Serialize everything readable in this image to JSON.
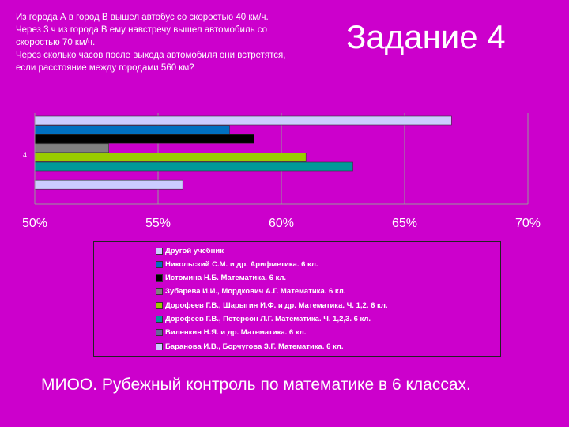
{
  "problem": {
    "lines": [
      " Из города А в город В вышел автобус со скоростью 40 км/ч.",
      "Через 3 ч из города В  ему навстречу вышел автомобиль со",
      "скоростью 70 км/ч.",
      "Через сколько часов после выхода автомобиля они встретятся,",
      "если расстояние между городами 560 км?"
    ]
  },
  "title": "Задание 4",
  "footer": "МИОО. Рубежный контроль по математике в 6 классах.",
  "chart_data": {
    "type": "bar",
    "orientation": "horizontal",
    "categories": [
      "4"
    ],
    "xlim": [
      0.5,
      0.7
    ],
    "x_ticks": [
      "50%",
      "55%",
      "60%",
      "65%",
      "70%"
    ],
    "x_tick_values": [
      0.5,
      0.55,
      0.6,
      0.65,
      0.7
    ],
    "legend_placement": "bottom",
    "series": [
      {
        "name": "Другой учебник",
        "value": 0.669,
        "color": "#ccccff"
      },
      {
        "name": "Никольский С.М. и др. Арифметика. 6 кл.",
        "value": 0.579,
        "color": "#0070c0"
      },
      {
        "name": "Истомина Н.Б. Математика. 6 кл.",
        "value": 0.589,
        "color": "#000000"
      },
      {
        "name": "Зубарева И.И., Мордкович А.Г. Математика. 6 кл.",
        "value": 0.53,
        "color": "#808080"
      },
      {
        "name": "Дорофеев Г.В., Шарыгин И.Ф. и др. Математика. Ч. 1,2. 6 кл.",
        "value": 0.61,
        "color": "#99cc00"
      },
      {
        "name": "Дорофеев Г.В., Петерсон Л.Г. Математика. Ч. 1,2,3. 6 кл.",
        "value": 0.629,
        "color": "#009999"
      },
      {
        "name": "Виленкин Н.Я. и др. Математика. 6 кл.",
        "value": null,
        "color": "#666699"
      },
      {
        "name": "Баранова И.В., Борчугова З.Г. Математика. 6 кл.",
        "value": 0.56,
        "color": "#ccccff"
      }
    ]
  }
}
